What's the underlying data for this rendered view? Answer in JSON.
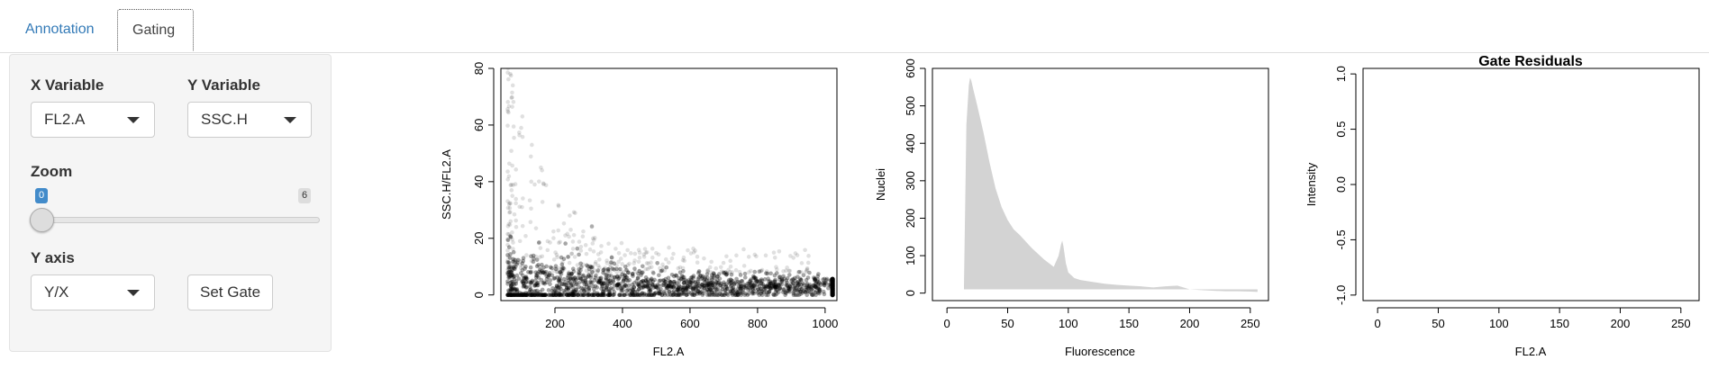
{
  "tabs": [
    {
      "label": "Annotation"
    },
    {
      "label": "Gating"
    }
  ],
  "controls": {
    "x_variable_label": "X Variable",
    "x_variable_value": "FL2.A",
    "y_variable_label": "Y Variable",
    "y_variable_value": "SSC.H",
    "zoom_label": "Zoom",
    "zoom_min": "0",
    "zoom_max": "6",
    "zoom_value": 0,
    "y_axis_label": "Y axis",
    "y_axis_value": "Y/X",
    "set_gate_label": "Set Gate"
  },
  "colors": {
    "accent": "#337ab7",
    "slider_bubble": "#428bca",
    "histogram_fill": "#d3d3d3",
    "scatter_points": "#000000"
  },
  "chart_data": [
    {
      "type": "scatter",
      "title": "",
      "xlabel": "FL2.A",
      "ylabel": "SSC.H/FL2.A",
      "xticks": [
        "200",
        "400",
        "600",
        "800",
        "1000"
      ],
      "yticks": [
        "0",
        "20",
        "40",
        "60",
        "80"
      ],
      "xlim": [
        40,
        1035
      ],
      "ylim": [
        -2,
        80
      ],
      "points_description": "dense black band near y 0-10 across x 60-1024, sparse scatter up to y~78 at low x"
    },
    {
      "type": "area",
      "title": "",
      "xlabel": "Fluorescence",
      "ylabel": "Nuclei",
      "xticks": [
        "0",
        "50",
        "100",
        "150",
        "200",
        "250"
      ],
      "yticks": [
        "0",
        "100",
        "200",
        "300",
        "400",
        "500",
        "600"
      ],
      "xlim": [
        -12,
        265
      ],
      "ylim": [
        -20,
        600
      ],
      "x": [
        14,
        16,
        18,
        19,
        20,
        22,
        25,
        30,
        35,
        40,
        45,
        50,
        55,
        60,
        70,
        80,
        88,
        92,
        94,
        95,
        96,
        98,
        100,
        105,
        110,
        120,
        130,
        140,
        150,
        160,
        170,
        180,
        190,
        200,
        210,
        220,
        230,
        240,
        250,
        256
      ],
      "y": [
        20,
        450,
        555,
        575,
        568,
        540,
        500,
        430,
        350,
        280,
        230,
        195,
        170,
        155,
        120,
        90,
        70,
        100,
        130,
        140,
        125,
        80,
        55,
        40,
        35,
        30,
        25,
        22,
        20,
        18,
        15,
        18,
        20,
        10,
        8,
        6,
        5,
        5,
        4,
        3
      ]
    },
    {
      "type": "scatter",
      "title": "Gate Residuals",
      "xlabel": "FL2.A",
      "ylabel": "Intensity",
      "xticks": [
        "0",
        "50",
        "100",
        "150",
        "200",
        "250"
      ],
      "yticks": [
        "-1.0",
        "-0.5",
        "0.0",
        "0.5",
        "1.0"
      ],
      "xlim": [
        -12,
        265
      ],
      "ylim": [
        -1.05,
        1.05
      ]
    }
  ]
}
